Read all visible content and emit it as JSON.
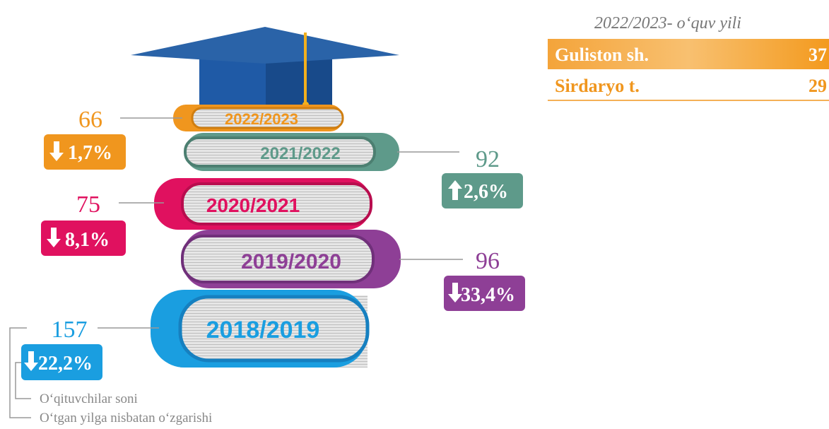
{
  "books": [
    {
      "year": "2022/2023",
      "count": "66",
      "change": "1,7%"
    },
    {
      "year": "2021/2022",
      "count": "92",
      "change": "2,6%"
    },
    {
      "year": "2020/2021",
      "count": "75",
      "change": "8,1%"
    },
    {
      "year": "2019/2020",
      "count": "96",
      "change": "33,4%"
    },
    {
      "year": "2018/2019",
      "count": "157",
      "change": "22,2%"
    }
  ],
  "table": {
    "header": "2022/2023- o‘quv yili",
    "rows": [
      [
        "Guliston sh.",
        "37"
      ],
      [
        "Sirdaryo t.",
        "29"
      ]
    ]
  },
  "legend": {
    "count": "O‘qituvchilar soni",
    "change": "O‘tgan yilga nisbatan o‘zgarishi"
  }
}
